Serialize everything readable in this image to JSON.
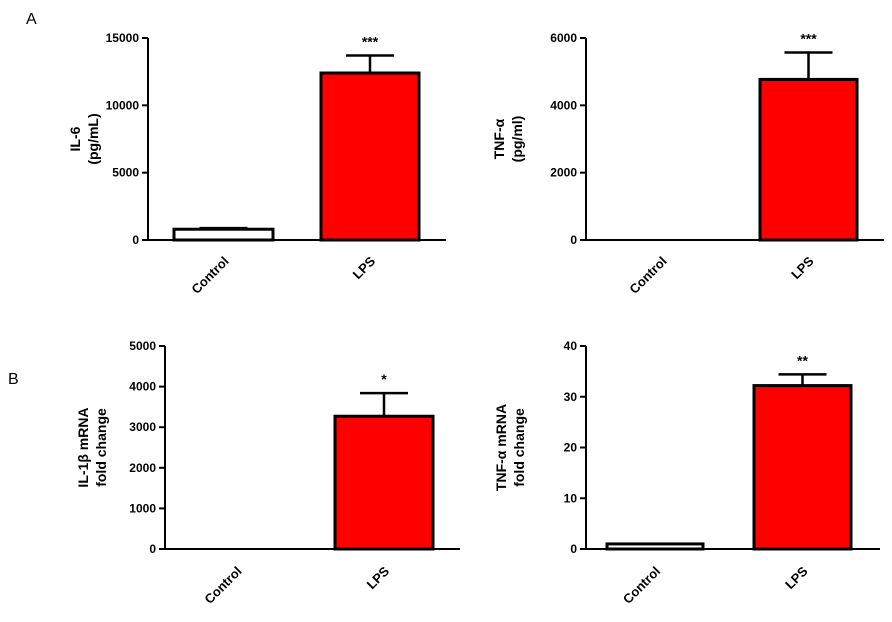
{
  "panel_labels": [
    "A",
    "B"
  ],
  "colors": {
    "control": "#ffffff",
    "lps": "#ff0000",
    "axis": "#000000"
  },
  "chart_data": [
    {
      "type": "bar",
      "panel": "A",
      "categories": [
        "Control",
        "LPS"
      ],
      "values": [
        800,
        12400
      ],
      "errors": [
        80,
        1300
      ],
      "significance": [
        "",
        "***"
      ],
      "ylabel_lines": [
        "IL-6",
        "(pg/mL)"
      ],
      "ylim": [
        0,
        15000
      ],
      "yticks": [
        0,
        5000,
        10000,
        15000
      ]
    },
    {
      "type": "bar",
      "panel": "",
      "categories": [
        "Control",
        "LPS"
      ],
      "values": [
        0,
        4770
      ],
      "errors": [
        0,
        800
      ],
      "significance": [
        "",
        "***"
      ],
      "ylabel_lines": [
        "TNF-α",
        "(pg/ml)"
      ],
      "ylim": [
        0,
        6000
      ],
      "yticks": [
        0,
        2000,
        4000,
        6000
      ]
    },
    {
      "type": "bar",
      "panel": "B",
      "categories": [
        "Control",
        "LPS"
      ],
      "values": [
        0,
        3270
      ],
      "errors": [
        0,
        570
      ],
      "significance": [
        "",
        "*"
      ],
      "ylabel_lines": [
        "IL-1β mRNA",
        "fold change"
      ],
      "ylim": [
        0,
        5000
      ],
      "yticks": [
        0,
        1000,
        2000,
        3000,
        4000,
        5000
      ]
    },
    {
      "type": "bar",
      "panel": "",
      "categories": [
        "Control",
        "LPS"
      ],
      "values": [
        1,
        32.2
      ],
      "errors": [
        0,
        2.2
      ],
      "significance": [
        "",
        "**"
      ],
      "ylabel_lines": [
        "TNF-α mRNA",
        "fold change"
      ],
      "ylim": [
        0,
        40
      ],
      "yticks": [
        0,
        10,
        20,
        30,
        40
      ]
    }
  ]
}
